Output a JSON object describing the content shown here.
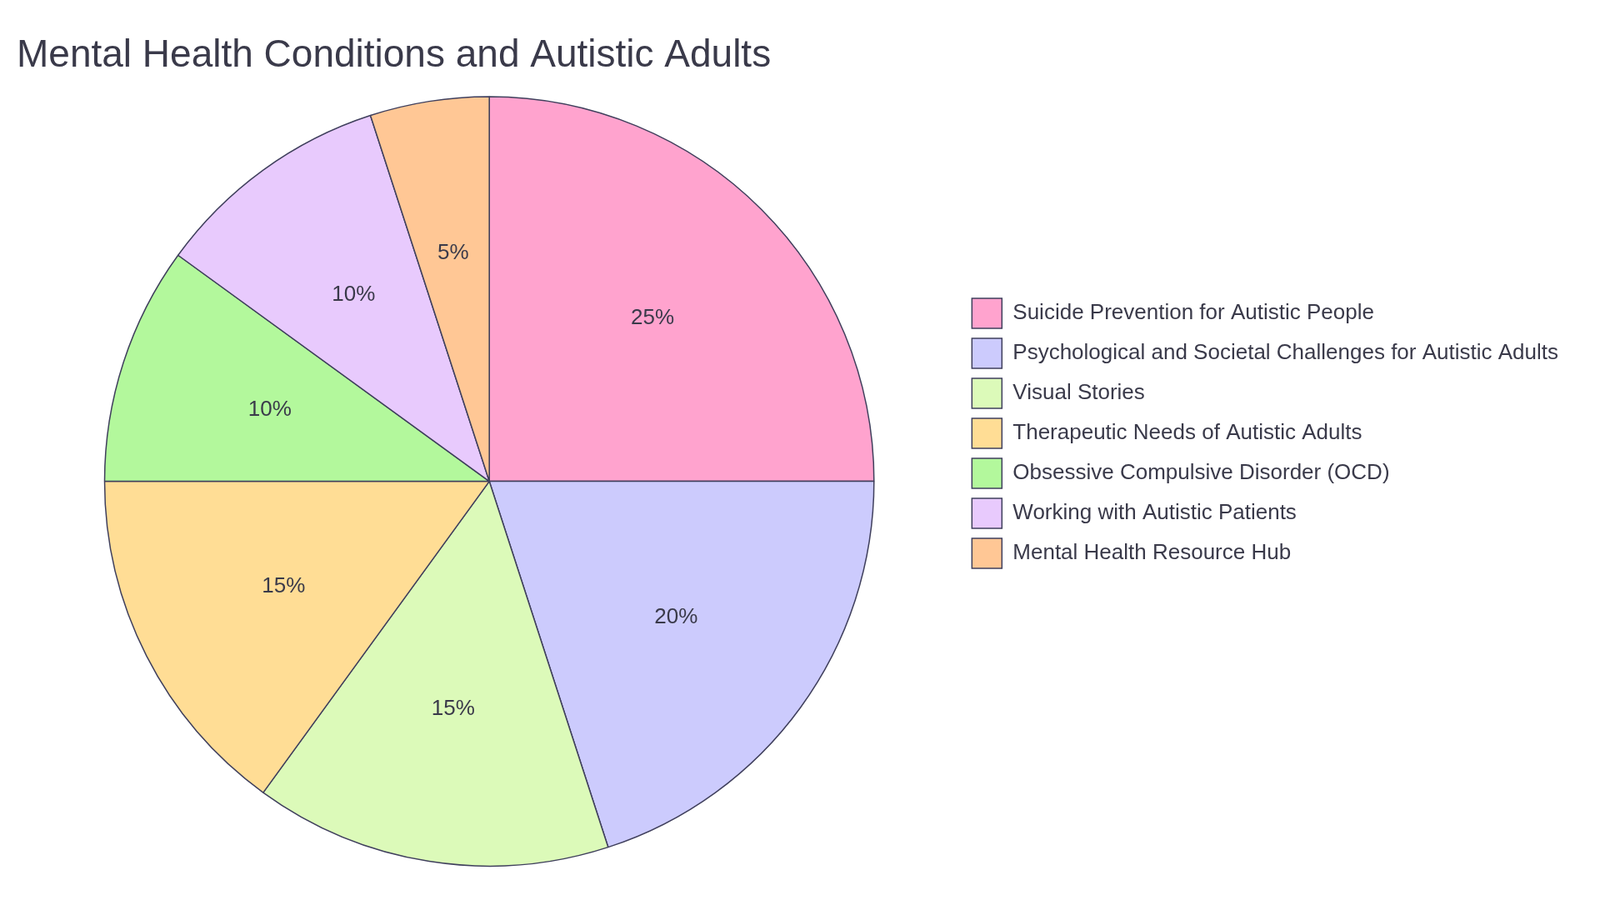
{
  "chart_data": {
    "type": "pie",
    "title": "Mental Health Conditions and Autistic Adults",
    "categories": [
      "Suicide Prevention for Autistic People",
      "Psychological and Societal Challenges for Autistic Adults",
      "Visual Stories",
      "Therapeutic Needs of Autistic Adults",
      "Obsessive Compulsive Disorder (OCD)",
      "Working with Autistic Patients",
      "Mental Health Resource Hub"
    ],
    "values": [
      25,
      20,
      15,
      15,
      10,
      10,
      5
    ],
    "value_labels": [
      "25%",
      "20%",
      "15%",
      "15%",
      "10%",
      "10%",
      "5%"
    ],
    "colors": [
      "#ffa3ce",
      "#cccbfd",
      "#dcfab9",
      "#ffdd95",
      "#b3f89c",
      "#e8cafd",
      "#ffc795"
    ],
    "data_labels": true,
    "legend": "right"
  }
}
